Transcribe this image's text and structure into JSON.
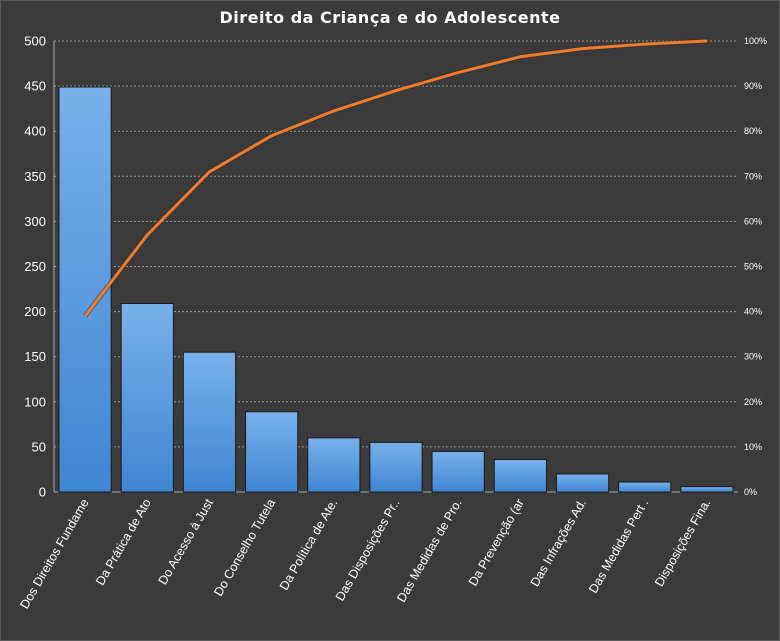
{
  "chart_data": {
    "type": "bar",
    "title": "Direito  da Criança e do Adolescente",
    "categories": [
      "Dos Direitos Fundame",
      "Da Prática de Ato",
      "Do Acesso à Just",
      "Do Conselho Tutela",
      "Da Política de Ate.",
      "Das Disposições Pr..",
      "Das Medidas de Pro.",
      "Da Prevenção (ar",
      "Das Infrações Ad.",
      "Das Medidas Pert .",
      "Disposições Fina."
    ],
    "series": [
      {
        "type": "bar",
        "values": [
          449,
          209,
          155,
          89,
          60,
          55,
          45,
          36,
          20,
          11,
          6
        ]
      },
      {
        "type": "line",
        "axis": "right",
        "values": [
          39,
          57,
          71,
          79,
          84.5,
          89,
          93,
          96.5,
          98.3,
          99.3,
          100
        ]
      }
    ],
    "ylim": [
      0,
      500
    ],
    "yticks": [
      "0",
      "50",
      "100",
      "150",
      "200",
      "250",
      "300",
      "350",
      "400",
      "450",
      "500"
    ],
    "y2lim": [
      0,
      100
    ],
    "y2ticks": [
      "0%",
      "10%",
      "20%",
      "30%",
      "40%",
      "50%",
      "60%",
      "70%",
      "80%",
      "90%",
      "100%"
    ],
    "grid": true,
    "legend": "none",
    "colors": {
      "bar": "#4a8fd8",
      "bar_top": "#78b0ea",
      "line": "#ee7d31",
      "background": "#3b3b3b",
      "grid": "#9a9a9a"
    }
  }
}
